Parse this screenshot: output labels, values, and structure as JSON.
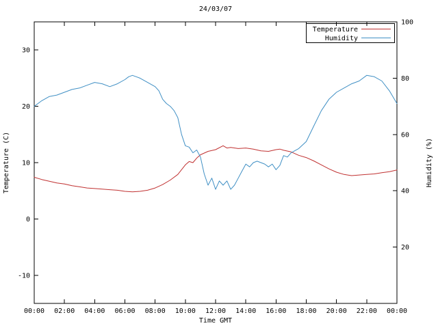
{
  "chart_data": {
    "type": "line",
    "title": "24/03/07",
    "xlabel": "Time GMT",
    "ylabel_left": "Temperature (C)",
    "ylabel_right": "Humidity (%)",
    "grid": false,
    "legend_position": "top-right",
    "legend_boxed": true,
    "xlim": [
      0,
      24
    ],
    "x_tick_hours": [
      0,
      2,
      4,
      6,
      8,
      10,
      12,
      14,
      16,
      18,
      20,
      22,
      24
    ],
    "x_ticks": [
      "00:00",
      "02:00",
      "04:00",
      "06:00",
      "08:00",
      "10:00",
      "12:00",
      "14:00",
      "16:00",
      "18:00",
      "20:00",
      "22:00",
      "00:00"
    ],
    "left_axis": {
      "lim": [
        -15,
        35
      ],
      "ticks": [
        -10,
        0,
        10,
        20,
        30
      ]
    },
    "right_axis": {
      "lim": [
        0,
        100
      ],
      "ticks": [
        20,
        40,
        60,
        80,
        100
      ]
    },
    "series": [
      {
        "name": "Temperature",
        "color": "#c03030",
        "axis": "left",
        "x": [
          0,
          0.5,
          1,
          1.5,
          2,
          2.5,
          3,
          3.5,
          4,
          4.5,
          5,
          5.5,
          6,
          6.5,
          7,
          7.5,
          8,
          8.5,
          9,
          9.5,
          10,
          10.25,
          10.5,
          10.75,
          11,
          11.5,
          12,
          12.5,
          12.75,
          13,
          13.5,
          14,
          14.5,
          15,
          15.5,
          16,
          16.25,
          16.5,
          17,
          17.5,
          18,
          18.5,
          19,
          19.5,
          20,
          20.5,
          21,
          21.5,
          22,
          22.5,
          23,
          23.5,
          24
        ],
        "values": [
          7.4,
          7.0,
          6.7,
          6.4,
          6.2,
          5.9,
          5.7,
          5.5,
          5.4,
          5.3,
          5.2,
          5.1,
          4.9,
          4.8,
          4.9,
          5.1,
          5.5,
          6.1,
          6.9,
          7.9,
          9.6,
          10.2,
          10.0,
          10.8,
          11.4,
          12.0,
          12.3,
          13.0,
          12.6,
          12.7,
          12.5,
          12.6,
          12.4,
          12.1,
          12.0,
          12.3,
          12.4,
          12.2,
          11.9,
          11.3,
          10.9,
          10.3,
          9.6,
          8.9,
          8.3,
          7.9,
          7.7,
          7.8,
          7.9,
          8.0,
          8.2,
          8.4,
          8.7
        ]
      },
      {
        "name": "Humidity",
        "color": "#3f8fc4",
        "axis": "right",
        "x": [
          0,
          0.5,
          1,
          1.5,
          2,
          2.5,
          3,
          3.5,
          4,
          4.5,
          5,
          5.5,
          6,
          6.25,
          6.5,
          6.75,
          7,
          7.5,
          8,
          8.25,
          8.5,
          8.75,
          9,
          9.25,
          9.5,
          9.75,
          10,
          10.25,
          10.5,
          10.75,
          11,
          11.25,
          11.5,
          11.75,
          12,
          12.25,
          12.5,
          12.75,
          13,
          13.25,
          13.5,
          13.75,
          14,
          14.25,
          14.5,
          14.75,
          15,
          15.25,
          15.5,
          15.75,
          16,
          16.25,
          16.5,
          16.75,
          17,
          17.5,
          18,
          18.5,
          19,
          19.5,
          20,
          20.5,
          21,
          21.5,
          22,
          22.5,
          23,
          23.5,
          24
        ],
        "values": [
          70,
          72,
          73.5,
          74,
          75,
          76,
          76.5,
          77.5,
          78.5,
          78,
          77,
          78,
          79.5,
          80.5,
          81,
          80.5,
          80,
          78.5,
          77,
          75.5,
          72.5,
          71,
          70,
          68.5,
          66,
          60,
          56,
          55.5,
          53.5,
          54.5,
          52,
          46,
          42,
          44.5,
          40.5,
          43.5,
          42,
          43.5,
          40.5,
          42,
          44.5,
          47,
          49.5,
          48.5,
          50,
          50.5,
          50,
          49.5,
          48.5,
          49.5,
          47.5,
          49,
          52.5,
          52,
          53.5,
          55,
          57.5,
          63,
          68.5,
          72.5,
          75,
          76.5,
          78,
          79,
          81,
          80.5,
          79,
          75.5,
          71
        ]
      }
    ]
  }
}
